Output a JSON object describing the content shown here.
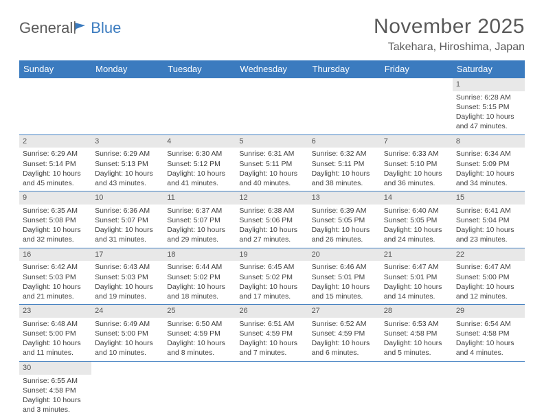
{
  "logo": {
    "text1": "General",
    "text2": "Blue"
  },
  "title": "November 2025",
  "location": "Takehara, Hiroshima, Japan",
  "weekdays": [
    "Sunday",
    "Monday",
    "Tuesday",
    "Wednesday",
    "Thursday",
    "Friday",
    "Saturday"
  ],
  "colors": {
    "header_bg": "#3b7bbf",
    "header_text": "#ffffff",
    "border": "#3b7bbf",
    "daynum_bg": "#e8e8e8",
    "text": "#404040"
  },
  "weeks": [
    [
      null,
      null,
      null,
      null,
      null,
      null,
      {
        "n": 1,
        "sr": "6:28 AM",
        "ss": "5:15 PM",
        "dl": "10 hours and 47 minutes."
      }
    ],
    [
      {
        "n": 2,
        "sr": "6:29 AM",
        "ss": "5:14 PM",
        "dl": "10 hours and 45 minutes."
      },
      {
        "n": 3,
        "sr": "6:29 AM",
        "ss": "5:13 PM",
        "dl": "10 hours and 43 minutes."
      },
      {
        "n": 4,
        "sr": "6:30 AM",
        "ss": "5:12 PM",
        "dl": "10 hours and 41 minutes."
      },
      {
        "n": 5,
        "sr": "6:31 AM",
        "ss": "5:11 PM",
        "dl": "10 hours and 40 minutes."
      },
      {
        "n": 6,
        "sr": "6:32 AM",
        "ss": "5:11 PM",
        "dl": "10 hours and 38 minutes."
      },
      {
        "n": 7,
        "sr": "6:33 AM",
        "ss": "5:10 PM",
        "dl": "10 hours and 36 minutes."
      },
      {
        "n": 8,
        "sr": "6:34 AM",
        "ss": "5:09 PM",
        "dl": "10 hours and 34 minutes."
      }
    ],
    [
      {
        "n": 9,
        "sr": "6:35 AM",
        "ss": "5:08 PM",
        "dl": "10 hours and 32 minutes."
      },
      {
        "n": 10,
        "sr": "6:36 AM",
        "ss": "5:07 PM",
        "dl": "10 hours and 31 minutes."
      },
      {
        "n": 11,
        "sr": "6:37 AM",
        "ss": "5:07 PM",
        "dl": "10 hours and 29 minutes."
      },
      {
        "n": 12,
        "sr": "6:38 AM",
        "ss": "5:06 PM",
        "dl": "10 hours and 27 minutes."
      },
      {
        "n": 13,
        "sr": "6:39 AM",
        "ss": "5:05 PM",
        "dl": "10 hours and 26 minutes."
      },
      {
        "n": 14,
        "sr": "6:40 AM",
        "ss": "5:05 PM",
        "dl": "10 hours and 24 minutes."
      },
      {
        "n": 15,
        "sr": "6:41 AM",
        "ss": "5:04 PM",
        "dl": "10 hours and 23 minutes."
      }
    ],
    [
      {
        "n": 16,
        "sr": "6:42 AM",
        "ss": "5:03 PM",
        "dl": "10 hours and 21 minutes."
      },
      {
        "n": 17,
        "sr": "6:43 AM",
        "ss": "5:03 PM",
        "dl": "10 hours and 19 minutes."
      },
      {
        "n": 18,
        "sr": "6:44 AM",
        "ss": "5:02 PM",
        "dl": "10 hours and 18 minutes."
      },
      {
        "n": 19,
        "sr": "6:45 AM",
        "ss": "5:02 PM",
        "dl": "10 hours and 17 minutes."
      },
      {
        "n": 20,
        "sr": "6:46 AM",
        "ss": "5:01 PM",
        "dl": "10 hours and 15 minutes."
      },
      {
        "n": 21,
        "sr": "6:47 AM",
        "ss": "5:01 PM",
        "dl": "10 hours and 14 minutes."
      },
      {
        "n": 22,
        "sr": "6:47 AM",
        "ss": "5:00 PM",
        "dl": "10 hours and 12 minutes."
      }
    ],
    [
      {
        "n": 23,
        "sr": "6:48 AM",
        "ss": "5:00 PM",
        "dl": "10 hours and 11 minutes."
      },
      {
        "n": 24,
        "sr": "6:49 AM",
        "ss": "5:00 PM",
        "dl": "10 hours and 10 minutes."
      },
      {
        "n": 25,
        "sr": "6:50 AM",
        "ss": "4:59 PM",
        "dl": "10 hours and 8 minutes."
      },
      {
        "n": 26,
        "sr": "6:51 AM",
        "ss": "4:59 PM",
        "dl": "10 hours and 7 minutes."
      },
      {
        "n": 27,
        "sr": "6:52 AM",
        "ss": "4:59 PM",
        "dl": "10 hours and 6 minutes."
      },
      {
        "n": 28,
        "sr": "6:53 AM",
        "ss": "4:58 PM",
        "dl": "10 hours and 5 minutes."
      },
      {
        "n": 29,
        "sr": "6:54 AM",
        "ss": "4:58 PM",
        "dl": "10 hours and 4 minutes."
      }
    ],
    [
      {
        "n": 30,
        "sr": "6:55 AM",
        "ss": "4:58 PM",
        "dl": "10 hours and 3 minutes."
      },
      null,
      null,
      null,
      null,
      null,
      null
    ]
  ],
  "labels": {
    "sunrise": "Sunrise:",
    "sunset": "Sunset:",
    "daylight": "Daylight:"
  }
}
